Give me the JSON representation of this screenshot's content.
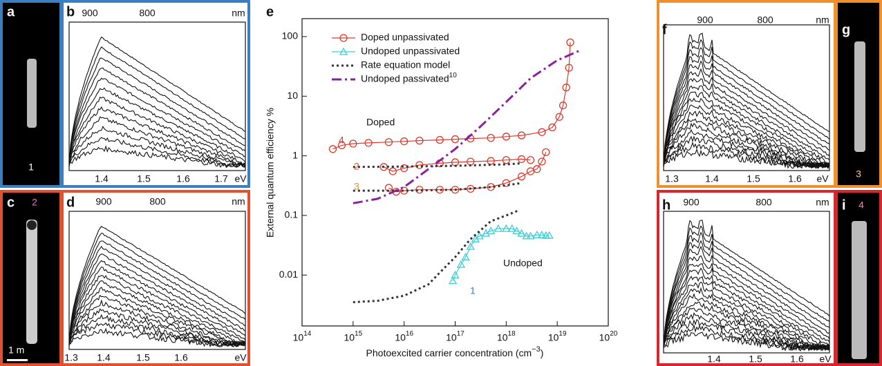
{
  "chart_data": {
    "type": "line",
    "log_x": true,
    "log_y": true,
    "title": "e",
    "xlabel": {
      "text": "Photoexcited carrier concentration (cm",
      "sup": "−3",
      "end": ")"
    },
    "ylabel": "External quantum efficiency %",
    "xlim": [
      100000000000000.0,
      1e+20
    ],
    "ylim": [
      0.0014,
      200
    ],
    "xticks": [
      {
        "value": 100000000000000.0,
        "label": "10^14"
      },
      {
        "value": 1000000000000000.0,
        "label": "10^15"
      },
      {
        "value": 1e+16,
        "label": "10^16"
      },
      {
        "value": 1e+17,
        "label": "10^17"
      },
      {
        "value": 1e+18,
        "label": "10^18"
      },
      {
        "value": 1e+19,
        "label": "10^19"
      },
      {
        "value": 1e+20,
        "label": "10^20"
      }
    ],
    "yticks": [
      0.01,
      0.1,
      1,
      10,
      100
    ],
    "legend": "top-left",
    "series": [
      {
        "name": "Doped unpassivated",
        "color": "#e0392b",
        "marker": "circle",
        "dash": "solid",
        "x": [
          400000000000000.0,
          600000000000000.0,
          1000000000000000.0,
          2000000000000000.0,
          5000000000000000.0,
          1e+16,
          2e+16,
          5e+16,
          1e+17,
          2e+17,
          5e+17,
          1e+18,
          2e+18,
          5e+18,
          8e+18,
          1.1e+19,
          1.3e+19,
          1.5e+19,
          1.7e+19,
          1.8e+19,
          null,
          4000000000000000.0,
          6000000000000000.0,
          1e+16,
          2e+16,
          5e+16,
          1e+17,
          2e+17,
          5e+17,
          1e+18,
          2e+18,
          3e+18,
          null,
          5000000000000000.0,
          7000000000000000.0,
          1e+16,
          2e+16,
          5e+16,
          1e+17,
          2e+17,
          5e+17,
          1e+18,
          2e+18,
          3e+18,
          4e+18,
          5e+18,
          6e+18
        ],
        "values": [
          1.3,
          1.5,
          1.6,
          1.65,
          1.7,
          1.75,
          1.8,
          1.85,
          1.9,
          1.95,
          2.0,
          2.1,
          2.2,
          2.5,
          3,
          4.5,
          7,
          14,
          30,
          80,
          null,
          0.65,
          0.55,
          0.62,
          0.7,
          0.75,
          0.78,
          0.8,
          0.82,
          0.85,
          0.88,
          0.85,
          null,
          0.29,
          0.25,
          0.26,
          0.27,
          0.27,
          0.27,
          0.28,
          0.3,
          0.35,
          0.45,
          0.55,
          0.6,
          0.8,
          1.15
        ]
      },
      {
        "name": "Undoped unpassivated",
        "color": "#3fcfd6",
        "marker": "triangle",
        "dash": "solid",
        "x": [
          9e+16,
          1e+17,
          1.3e+17,
          1.6e+17,
          2e+17,
          2.5e+17,
          3e+17,
          4e+17,
          5e+17,
          7e+17,
          1e+18,
          1.3e+18,
          1.6e+18,
          2e+18,
          2.5e+18,
          3e+18,
          4e+18,
          5e+18,
          6e+18,
          7e+18
        ],
        "values": [
          0.008,
          0.01,
          0.015,
          0.02,
          0.03,
          0.04,
          0.045,
          0.05,
          0.055,
          0.06,
          0.06,
          0.06,
          0.055,
          0.05,
          0.045,
          0.045,
          0.047,
          0.047,
          0.046,
          0.046
        ]
      },
      {
        "name": "Rate equation model",
        "color": "#333333",
        "marker": null,
        "dash": "dotted",
        "x": [
          1000000000000000.0,
          1e+16,
          1e+17,
          1e+18,
          2e+18,
          null,
          1000000000000000.0,
          1e+16,
          1e+17,
          5e+17,
          1e+18,
          2e+18,
          null,
          1000000000000000.0,
          3000000000000000.0,
          1e+16,
          3e+16,
          5e+16,
          1e+17,
          2e+17,
          5e+17,
          1e+18,
          1.7e+18
        ],
        "values": [
          0.65,
          0.66,
          0.68,
          0.72,
          0.75,
          null,
          0.26,
          0.26,
          0.27,
          0.3,
          0.32,
          0.35,
          null,
          0.0035,
          0.0037,
          0.0045,
          0.007,
          0.011,
          0.02,
          0.04,
          0.08,
          0.1,
          0.12
        ]
      },
      {
        "name": "Undoped passivated",
        "reference": "10",
        "color": "#8a1fa0",
        "marker": null,
        "dash": "dashdot",
        "x": [
          1000000000000000.0,
          3000000000000000.0,
          1e+16,
          3e+16,
          1e+17,
          3e+17,
          1e+18,
          3e+18,
          1e+19,
          3e+19
        ],
        "values": [
          0.16,
          0.19,
          0.3,
          0.6,
          1.3,
          3,
          8,
          20,
          40,
          60
        ]
      }
    ],
    "annotations": [
      "Doped",
      "Undoped",
      "4",
      "2",
      "3",
      "1"
    ]
  },
  "panels": {
    "a": {
      "label": "a",
      "number": "1"
    },
    "b": {
      "label": "b",
      "top": [
        "900",
        "800",
        "nm"
      ],
      "bottom": [
        "1.4",
        "1.5",
        "1.6",
        "1.7",
        "eV"
      ]
    },
    "c": {
      "label": "c",
      "number": "2",
      "scale": "1  m"
    },
    "d": {
      "label": "d",
      "top": [
        "900",
        "800",
        "nm"
      ],
      "bottom": [
        "1.3",
        "1.4",
        "1.5",
        "1.6",
        "eV"
      ]
    },
    "f": {
      "label": "f",
      "top": [
        "900",
        "800",
        "nm"
      ],
      "bottom": [
        "1.3",
        "1.4",
        "1.5",
        "1.6",
        "eV"
      ]
    },
    "g": {
      "label": "g",
      "number": "3"
    },
    "h": {
      "label": "h",
      "top": [
        "900",
        "800",
        "nm"
      ],
      "bottom": [
        "1.4",
        "1.5",
        "1.6",
        "eV"
      ]
    },
    "i": {
      "label": "i",
      "number": "4"
    }
  }
}
